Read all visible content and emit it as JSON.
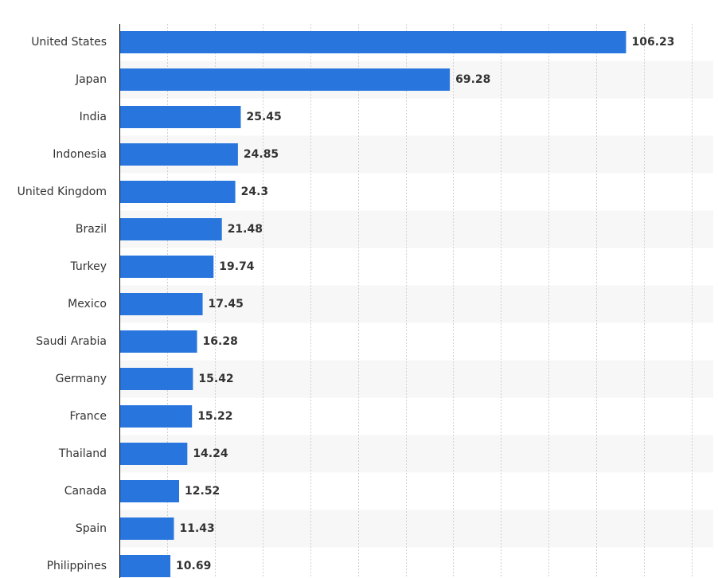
{
  "colors": {
    "bar": "#2876dd",
    "band": "#f7f7f7",
    "grid": "#d0d0d0",
    "text": "#333333"
  },
  "chart_data": {
    "type": "bar",
    "orientation": "horizontal",
    "title": "",
    "xlabel": "",
    "ylabel": "",
    "categories": [
      "United States",
      "Japan",
      "India",
      "Indonesia",
      "United Kingdom",
      "Brazil",
      "Turkey",
      "Mexico",
      "Saudi Arabia",
      "Germany",
      "France",
      "Thailand",
      "Canada",
      "Spain",
      "Philippines"
    ],
    "values": [
      106.23,
      69.28,
      25.45,
      24.85,
      24.3,
      21.48,
      19.74,
      17.45,
      16.28,
      15.42,
      15.22,
      14.24,
      12.52,
      11.43,
      10.69
    ],
    "value_labels": [
      "106.23",
      "69.28",
      "25.45",
      "24.85",
      "24.3",
      "21.48",
      "19.74",
      "17.45",
      "16.28",
      "15.42",
      "15.22",
      "14.24",
      "12.52",
      "11.43",
      "10.69"
    ],
    "xlim": [
      0,
      120
    ],
    "grid": true,
    "grid_step": 10,
    "legend": "none"
  }
}
